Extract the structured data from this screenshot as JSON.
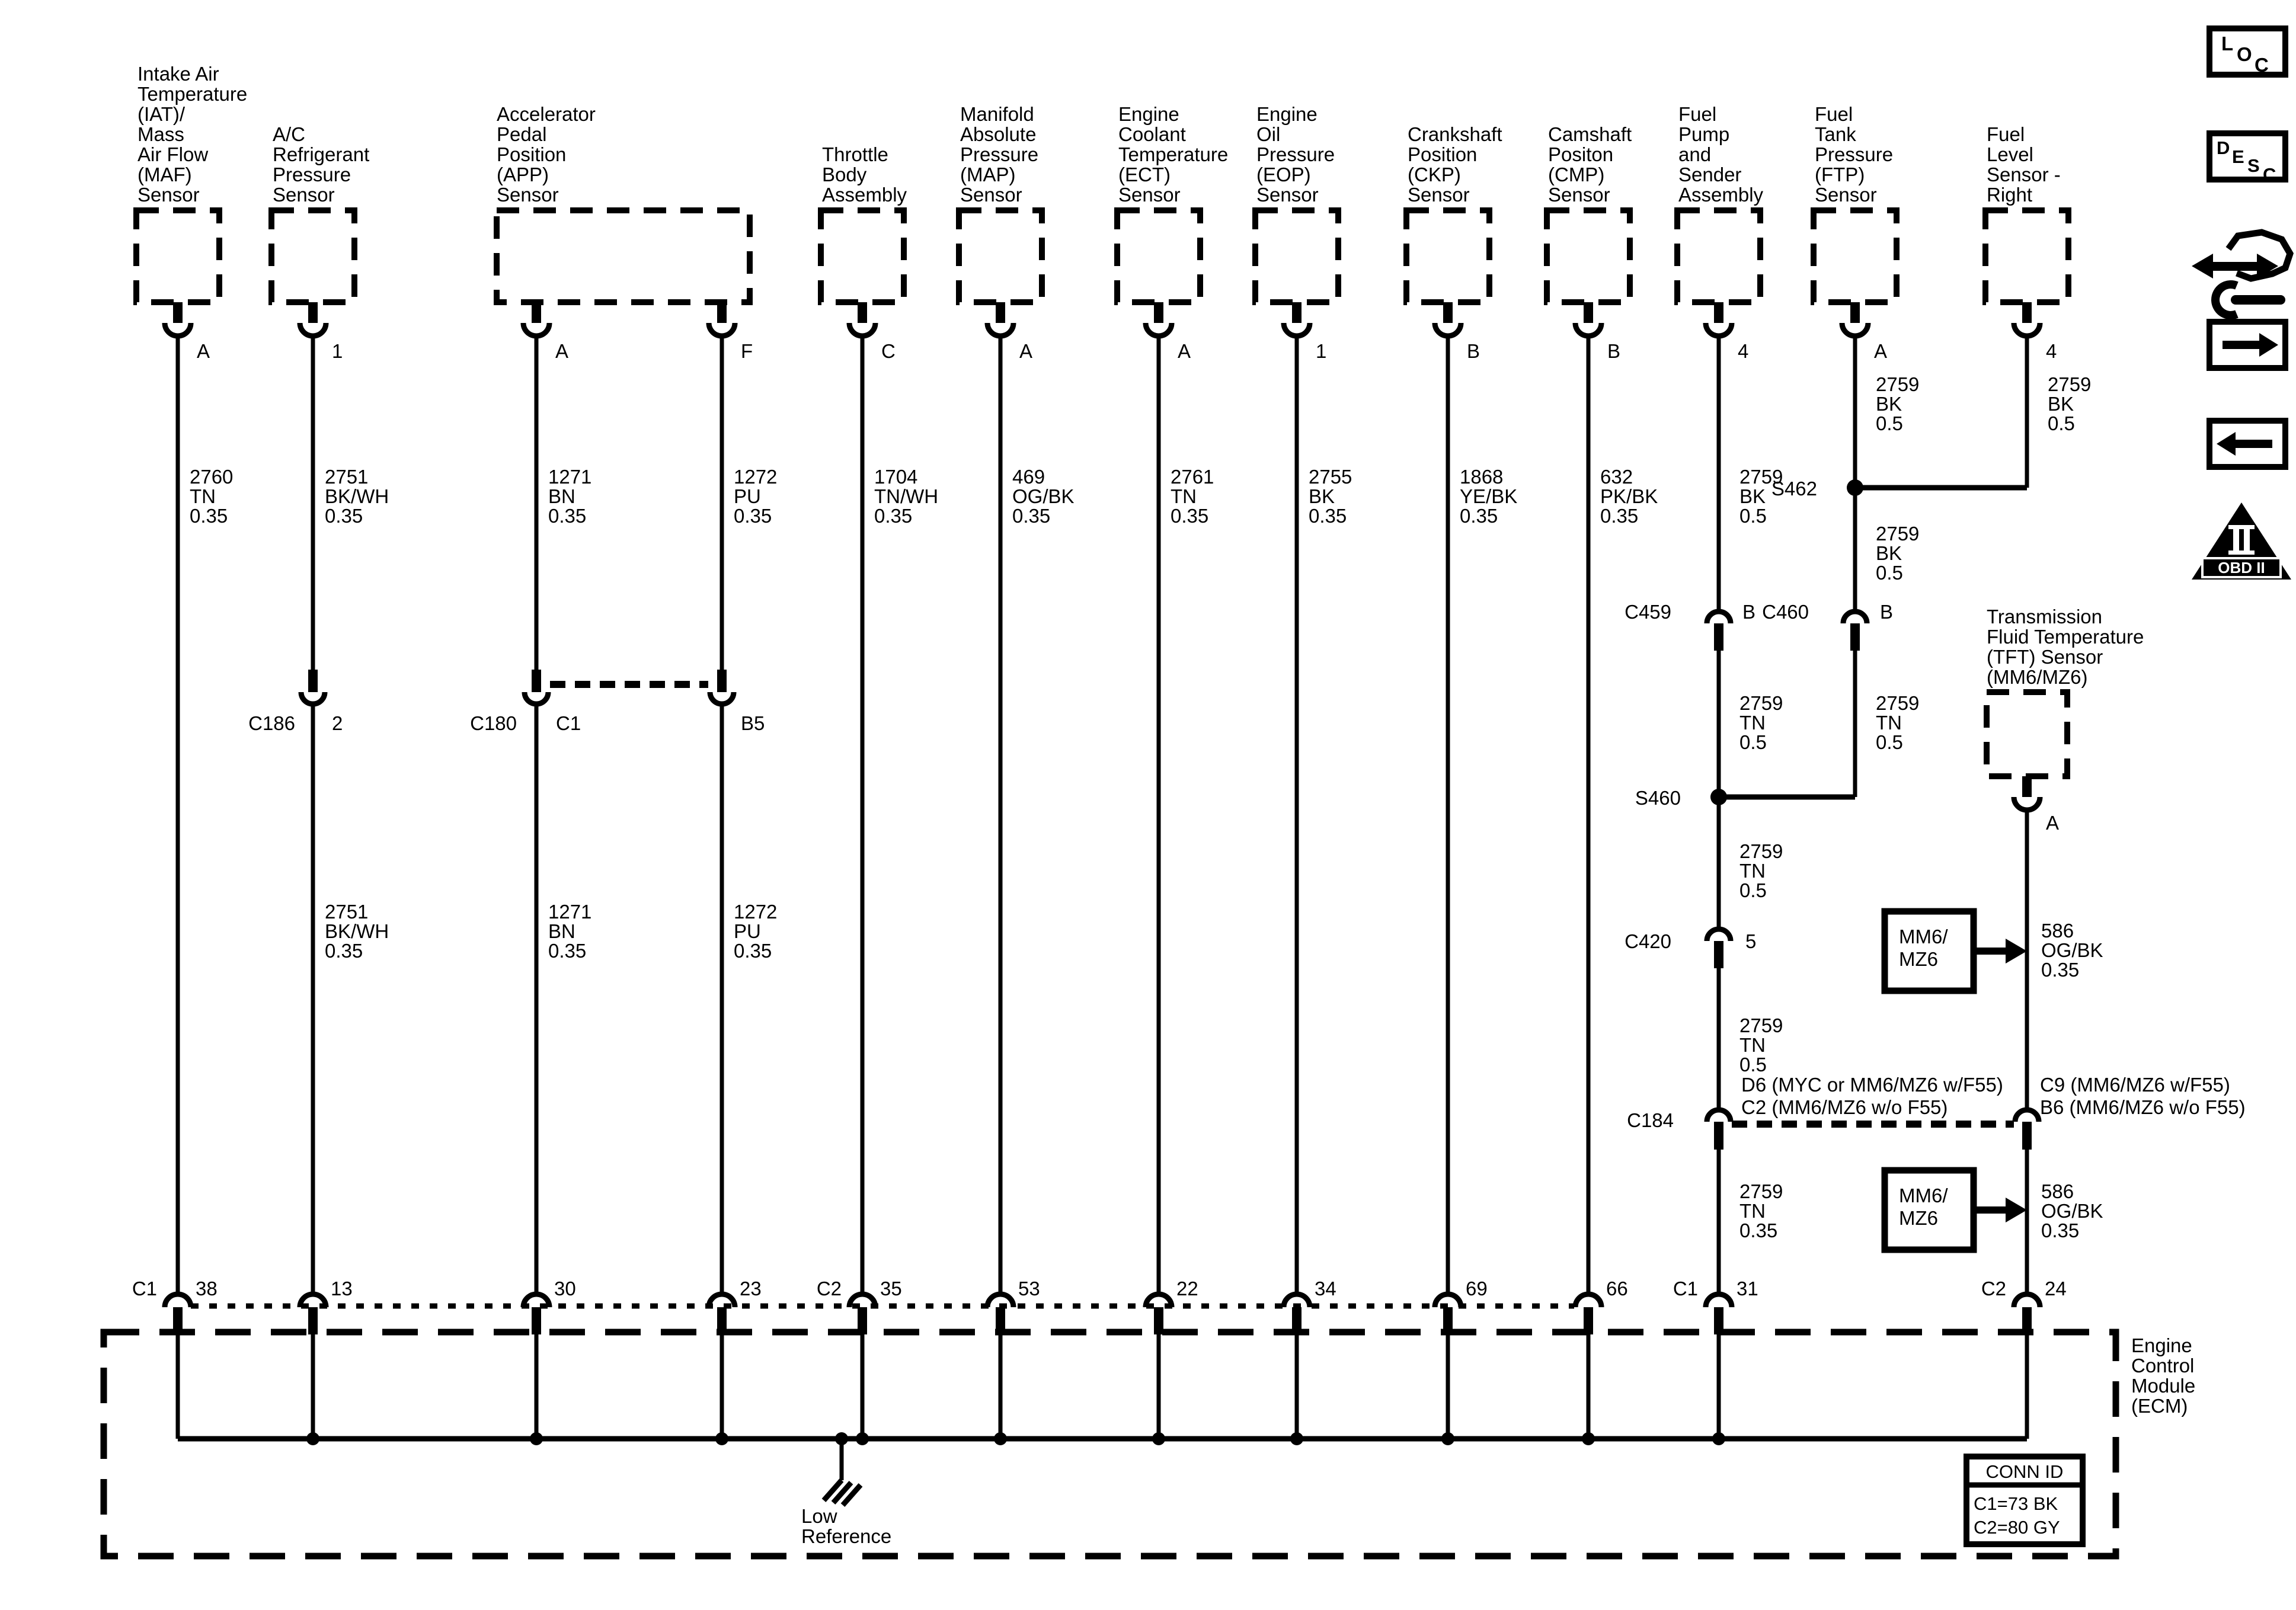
{
  "viewer": {
    "icons": {
      "loc_letters": [
        "L",
        "O",
        "C"
      ],
      "desc_letters": [
        "D",
        "E",
        "S",
        "C"
      ],
      "obd_label": "OBD II"
    }
  },
  "sensors": [
    {
      "lines": [
        "Intake Air",
        "Temperature",
        "(IAT)/",
        "Mass",
        "Air Flow",
        "(MAF)",
        "Sensor"
      ],
      "pin": "A"
    },
    {
      "lines": [
        "A/C",
        "Refrigerant",
        "Pressure",
        "Sensor"
      ],
      "pin": "1"
    },
    {
      "lines": [
        "Accelerator",
        "Pedal",
        "Position",
        "(APP)",
        "Sensor"
      ],
      "pin_a": "A",
      "pin_f": "F"
    },
    {
      "lines": [
        "Throttle",
        "Body",
        "Assembly"
      ],
      "pin": "C"
    },
    {
      "lines": [
        "Manifold",
        "Absolute",
        "Pressure",
        "(MAP)",
        "Sensor"
      ],
      "pin": "A"
    },
    {
      "lines": [
        "Engine",
        "Coolant",
        "Temperature",
        "(ECT)",
        "Sensor"
      ],
      "pin": "A"
    },
    {
      "lines": [
        "Engine",
        "Oil",
        "Pressure",
        "(EOP)",
        "Sensor"
      ],
      "pin": "1"
    },
    {
      "lines": [
        "Crankshaft",
        "Position",
        "(CKP)",
        "Sensor"
      ],
      "pin": "B"
    },
    {
      "lines": [
        "Camshaft",
        "Positon",
        "(CMP)",
        "Sensor"
      ],
      "pin": "B"
    },
    {
      "lines": [
        "Fuel",
        "Pump",
        "and",
        "Sender",
        "Assembly"
      ],
      "pin": "4"
    },
    {
      "lines": [
        "Fuel",
        "Tank",
        "Pressure",
        "(FTP)",
        "Sensor"
      ],
      "pin": "A"
    },
    {
      "lines": [
        "Fuel",
        "Level",
        "Sensor -",
        "Right"
      ],
      "pin": "4"
    },
    {
      "lines": [
        "Transmission",
        "Fluid Temperature",
        "(TFT) Sensor",
        "(MM6/MZ6)"
      ],
      "pin": "A"
    }
  ],
  "wires": {
    "iat": [
      "2760",
      "TN",
      "0.35"
    ],
    "ac_upper": [
      "2751",
      "BK/WH",
      "0.35"
    ],
    "ac_lower": [
      "2751",
      "BK/WH",
      "0.35"
    ],
    "app_a_upper": [
      "1271",
      "BN",
      "0.35"
    ],
    "app_a_lower": [
      "1271",
      "BN",
      "0.35"
    ],
    "app_f_upper": [
      "1272",
      "PU",
      "0.35"
    ],
    "app_f_lower": [
      "1272",
      "PU",
      "0.35"
    ],
    "throttle": [
      "1704",
      "TN/WH",
      "0.35"
    ],
    "map": [
      "469",
      "OG/BK",
      "0.35"
    ],
    "ect": [
      "2761",
      "TN",
      "0.35"
    ],
    "eop": [
      "2755",
      "BK",
      "0.35"
    ],
    "ckp": [
      "1868",
      "YE/BK",
      "0.35"
    ],
    "cmp": [
      "632",
      "PK/BK",
      "0.35"
    ],
    "fp_bk": [
      "2759",
      "BK",
      "0.5"
    ],
    "ftp_bk_upper": [
      "2759",
      "BK",
      "0.5"
    ],
    "ftp_bk_lower": [
      "2759",
      "BK",
      "0.5"
    ],
    "fl_bk": [
      "2759",
      "BK",
      "0.5"
    ],
    "fp_tn_a": [
      "2759",
      "TN",
      "0.5"
    ],
    "ftp_tn": [
      "2759",
      "TN",
      "0.5"
    ],
    "fp_tn_b": [
      "2759",
      "TN",
      "0.5"
    ],
    "fp_tn_c": [
      "2759",
      "TN",
      "0.5"
    ],
    "fp_tn_d": [
      "2759",
      "TN",
      "0.35"
    ],
    "tft_upper": [
      "586",
      "OG/BK",
      "0.35"
    ],
    "tft_lower": [
      "586",
      "OG/BK",
      "0.35"
    ]
  },
  "connectors": {
    "c186": {
      "name": "C186",
      "pin": "2"
    },
    "c180": {
      "name": "C180",
      "pin_left": "C1",
      "pin_right": "B5"
    },
    "s462": {
      "name": "S462"
    },
    "c459": {
      "name": "C459",
      "pin": "B"
    },
    "c460": {
      "name": "C460",
      "pin": "B"
    },
    "s460": {
      "name": "S460"
    },
    "c420": {
      "name": "C420",
      "pin": "5"
    },
    "c184": {
      "name": "C184",
      "left_pins": [
        "D6 (MYC or MM6/MZ6 w/F55)",
        "C2 (MM6/MZ6 w/o F55)"
      ],
      "right_pins": [
        "C9 (MM6/MZ6 w/F55)",
        "B6 (MM6/MZ6 w/o F55)"
      ]
    }
  },
  "tags": {
    "mm6_upper": [
      "MM6/",
      "MZ6"
    ],
    "mm6_lower": [
      "MM6/",
      "MZ6"
    ]
  },
  "ecm": {
    "name_lines": [
      "Engine",
      "Control",
      "Module",
      "(ECM)"
    ],
    "pins": [
      {
        "group": "C1",
        "num": "38"
      },
      {
        "num": "13"
      },
      {
        "num": "30"
      },
      {
        "num": "23"
      },
      {
        "group": "C2",
        "num": "35"
      },
      {
        "num": "53"
      },
      {
        "num": "22"
      },
      {
        "num": "34"
      },
      {
        "num": "69"
      },
      {
        "num": "66"
      },
      {
        "group": "C1",
        "num": "31"
      },
      {
        "group": "C2",
        "num": "24"
      }
    ],
    "low_reference": [
      "Low",
      "Reference"
    ],
    "conn_id": {
      "title": "CONN ID",
      "rows": [
        "C1=73 BK",
        "C2=80 GY"
      ]
    }
  }
}
